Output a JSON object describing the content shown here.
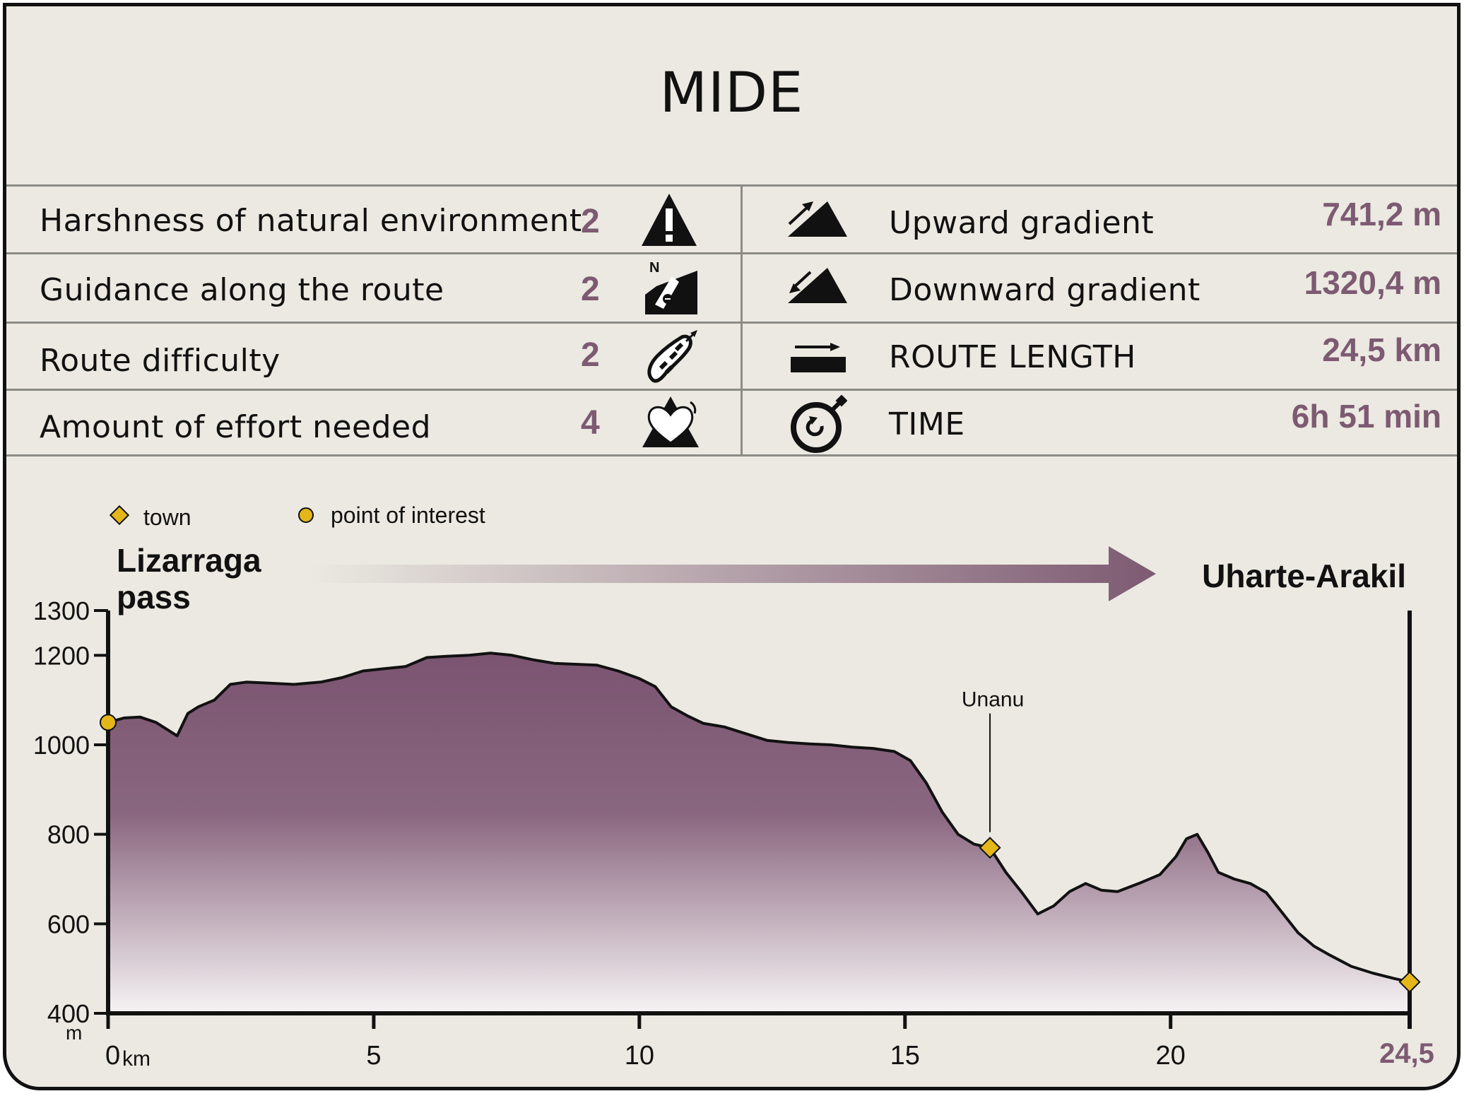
{
  "title": "MIDE",
  "mide": [
    {
      "label": "Harshness of natural environment",
      "value": "2",
      "icon": "warning-triangle-icon"
    },
    {
      "label": "Guidance along the route",
      "value": "2",
      "icon": "compass-signpost-icon"
    },
    {
      "label": "Route difficulty",
      "value": "2",
      "icon": "footprint-icon"
    },
    {
      "label": "Amount of effort needed",
      "value": "4",
      "icon": "heart-mountain-icon"
    }
  ],
  "stats": [
    {
      "label": "Upward gradient",
      "value": "741,2 m",
      "icon": "upward-gradient-icon"
    },
    {
      "label": "Downward gradient",
      "value": "1320,4 m",
      "icon": "downward-gradient-icon"
    },
    {
      "label": "ROUTE LENGTH",
      "value": "24,5 km",
      "icon": "route-length-icon"
    },
    {
      "label": "TIME",
      "value": "6h 51 min",
      "icon": "stopwatch-icon"
    }
  ],
  "colors": {
    "accent": "#7d5a72",
    "background": "#ebe9e1",
    "marker": "#e3b71a"
  },
  "legend": {
    "town": "town",
    "poi": "point of interest"
  },
  "chart_data": {
    "type": "area",
    "start_label": "Lizarraga pass",
    "end_label": "Uharte-Arakil",
    "ylabel": "m",
    "xunit": "km",
    "xlim": [
      0,
      24.5
    ],
    "ylim": [
      400,
      1300
    ],
    "yticks": [
      1300,
      1200,
      1000,
      800,
      600,
      400
    ],
    "xticks": [
      0,
      5,
      10,
      15,
      20
    ],
    "xticks_labels": [
      "0",
      "5",
      "10",
      "15",
      "20"
    ],
    "end_tick_label": "24,5",
    "profile": {
      "x": [
        0,
        0.3,
        0.6,
        0.9,
        1.1,
        1.3,
        1.5,
        1.7,
        2.0,
        2.3,
        2.6,
        3.0,
        3.5,
        4.0,
        4.4,
        4.8,
        5.2,
        5.6,
        6.0,
        6.4,
        6.8,
        7.2,
        7.6,
        8.0,
        8.4,
        8.8,
        9.2,
        9.6,
        10.0,
        10.3,
        10.6,
        10.9,
        11.2,
        11.6,
        12.0,
        12.4,
        12.8,
        13.2,
        13.6,
        14.0,
        14.4,
        14.8,
        15.1,
        15.4,
        15.7,
        16.0,
        16.3,
        16.6,
        16.9,
        17.2,
        17.5,
        17.8,
        18.1,
        18.4,
        18.7,
        19.0,
        19.4,
        19.8,
        20.1,
        20.3,
        20.5,
        20.7,
        20.9,
        21.2,
        21.5,
        21.8,
        22.1,
        22.4,
        22.7,
        23.0,
        23.4,
        23.8,
        24.2,
        24.5
      ],
      "y": [
        1050,
        1060,
        1062,
        1050,
        1035,
        1020,
        1070,
        1085,
        1100,
        1135,
        1140,
        1138,
        1135,
        1140,
        1150,
        1165,
        1170,
        1175,
        1195,
        1198,
        1200,
        1205,
        1200,
        1190,
        1182,
        1180,
        1178,
        1165,
        1148,
        1130,
        1085,
        1065,
        1048,
        1040,
        1025,
        1010,
        1005,
        1002,
        1000,
        995,
        992,
        985,
        965,
        915,
        850,
        800,
        778,
        770,
        715,
        670,
        622,
        640,
        672,
        690,
        675,
        672,
        690,
        710,
        750,
        790,
        800,
        760,
        715,
        700,
        690,
        670,
        625,
        580,
        550,
        530,
        505,
        490,
        478,
        470
      ]
    },
    "markers": [
      {
        "x": 0,
        "y": 1050,
        "type": "poi"
      },
      {
        "x": 16.6,
        "y": 770,
        "type": "town",
        "label": "Unanu"
      },
      {
        "x": 24.5,
        "y": 470,
        "type": "town"
      }
    ]
  }
}
